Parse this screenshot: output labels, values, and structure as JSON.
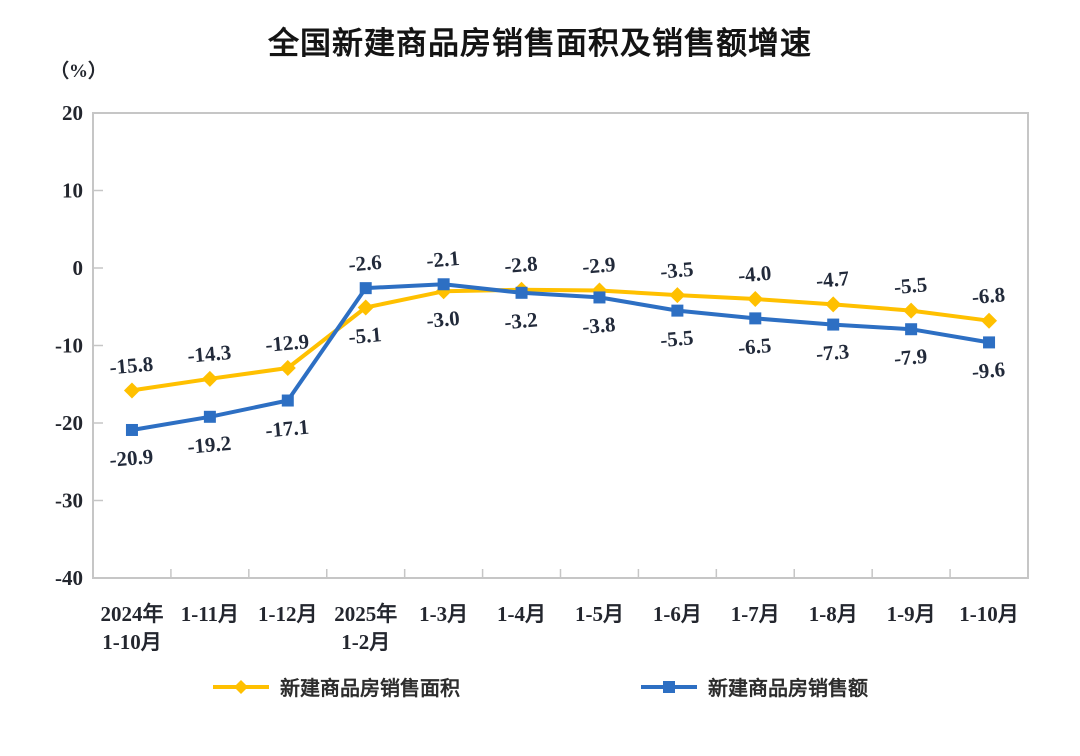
{
  "title": "全国新建商品房销售面积及销售额增速",
  "unit_label": "（%）",
  "chart_data": {
    "type": "line",
    "categories": [
      "2024年\n1-10月",
      "1-11月",
      "1-12月",
      "2025年\n1-2月",
      "1-3月",
      "1-4月",
      "1-5月",
      "1-6月",
      "1-7月",
      "1-8月",
      "1-9月",
      "1-10月"
    ],
    "series": [
      {
        "name": "新建商品房销售面积",
        "color": "#FFC000",
        "marker": "diamond",
        "values": [
          -15.8,
          -14.3,
          -12.9,
          -5.1,
          -3.0,
          -2.8,
          -2.9,
          -3.5,
          -4.0,
          -4.7,
          -5.5,
          -6.8
        ]
      },
      {
        "name": "新建商品房销售额",
        "color": "#2D6FC3",
        "marker": "square",
        "values": [
          -20.9,
          -19.2,
          -17.1,
          -2.6,
          -2.1,
          -3.2,
          -3.8,
          -5.5,
          -6.5,
          -7.3,
          -7.9,
          -9.6
        ]
      }
    ],
    "ylabel": "（%）",
    "ylim": [
      -40,
      20
    ],
    "y_ticks": [
      20,
      10,
      0,
      -10,
      -20,
      -30,
      -40
    ],
    "grid": false,
    "data_labels": true,
    "legend_position": "bottom",
    "axis_color": "#c6c6c6"
  }
}
